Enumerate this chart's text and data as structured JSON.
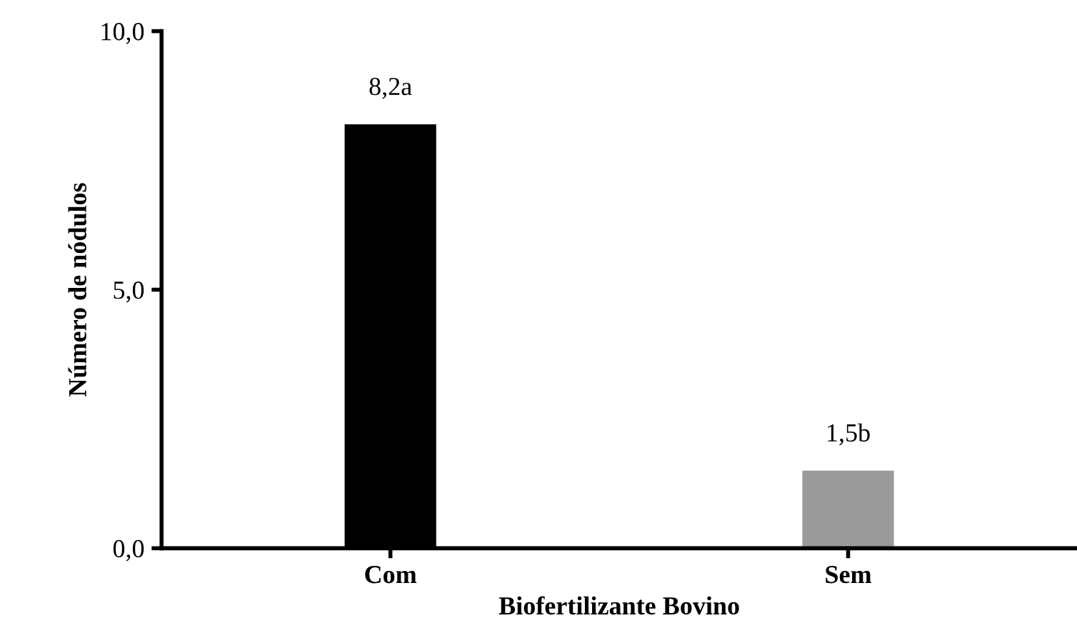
{
  "chart_data": {
    "type": "bar",
    "xlabel": "Biofertilizante Bovino",
    "ylabel": "Número de nódulos",
    "categories": [
      "Com",
      "Sem"
    ],
    "values": [
      8.2,
      1.5
    ],
    "colors": [
      "#000000",
      "#9a9a9a"
    ],
    "value_labels": [
      "8,2a",
      "1,5b"
    ],
    "ylim": [
      0,
      10
    ],
    "yticks": [
      {
        "value": 0,
        "label": "0,0"
      },
      {
        "value": 5,
        "label": "5,0"
      },
      {
        "value": 10,
        "label": "10,0"
      }
    ],
    "grid": false,
    "legend": false
  }
}
